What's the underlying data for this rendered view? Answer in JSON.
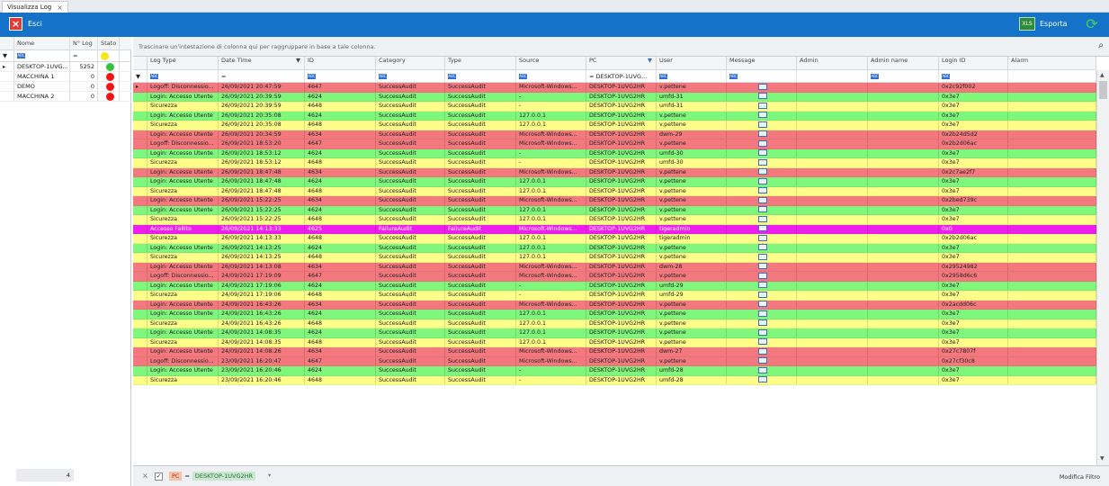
{
  "tab": {
    "title": "Visualizza Log",
    "close": "×"
  },
  "toolbar": {
    "esci_label": "Esci",
    "esporta_label": "Esporta"
  },
  "left_panel": {
    "headers": [
      "Nome",
      "N° Log",
      "Stato"
    ],
    "filter_text": "=",
    "rows": [
      {
        "name": "DESKTOP-1UVG...",
        "count": "5252",
        "status": "green"
      },
      {
        "name": "MACCHINA 1",
        "count": "0",
        "status": "red"
      },
      {
        "name": "DEMO",
        "count": "0",
        "status": "red"
      },
      {
        "name": "MACCHINA 2",
        "count": "0",
        "status": "red"
      }
    ],
    "filter_status": "yellow",
    "footer_count": "4"
  },
  "group_panel": {
    "hint": "Trascinare un'intestazione di colonna qui per raggruppare in base a tale colonna."
  },
  "columns": [
    "Log Type",
    "Date Time",
    "ID",
    "Category",
    "Type",
    "Source",
    "PC",
    "User",
    "Message",
    "Admin",
    "Admin name",
    "Login ID",
    "Alarm"
  ],
  "filter_row": {
    "date": "=",
    "pc": "= DESKTOP-1UVG..."
  },
  "rows": [
    {
      "c": "red",
      "t": "Logoff: Disconnessio...",
      "d": "26/09/2021 20:47:59",
      "id": "4647",
      "cat": "SuccessAudit",
      "ty": "SuccessAudit",
      "src": "Microsoft-Windows...",
      "pc": "DESKTOP-1UVG2HR",
      "u": "v.pettene",
      "lid": "0x2c92f002"
    },
    {
      "c": "green",
      "t": "Login: Accesso Utente",
      "d": "26/09/2021 20:39:59",
      "id": "4624",
      "cat": "SuccessAudit",
      "ty": "SuccessAudit",
      "src": "-",
      "pc": "DESKTOP-1UVG2HR",
      "u": "umfd-31",
      "lid": "0x3e7"
    },
    {
      "c": "yellow",
      "t": "Sicurezza",
      "d": "26/09/2021 20:39:59",
      "id": "4648",
      "cat": "SuccessAudit",
      "ty": "SuccessAudit",
      "src": "-",
      "pc": "DESKTOP-1UVG2HR",
      "u": "umfd-31",
      "lid": "0x3e7"
    },
    {
      "c": "green",
      "t": "Login: Accesso Utente",
      "d": "26/09/2021 20:35:08",
      "id": "4624",
      "cat": "SuccessAudit",
      "ty": "SuccessAudit",
      "src": "127.0.0.1",
      "pc": "DESKTOP-1UVG2HR",
      "u": "v.pettene",
      "lid": "0x3e7"
    },
    {
      "c": "yellow",
      "t": "Sicurezza",
      "d": "26/09/2021 20:35:08",
      "id": "4648",
      "cat": "SuccessAudit",
      "ty": "SuccessAudit",
      "src": "127.0.0.1",
      "pc": "DESKTOP-1UVG2HR",
      "u": "v.pettene",
      "lid": "0x3e7"
    },
    {
      "c": "red",
      "t": "Login: Accesso Utente",
      "d": "26/09/2021 20:34:59",
      "id": "4634",
      "cat": "SuccessAudit",
      "ty": "SuccessAudit",
      "src": "Microsoft-Windows...",
      "pc": "DESKTOP-1UVG2HR",
      "u": "dwm-29",
      "lid": "0x2b24d5d2"
    },
    {
      "c": "red",
      "t": "Logoff: Disconnessio...",
      "d": "26/09/2021 18:53:20",
      "id": "4647",
      "cat": "SuccessAudit",
      "ty": "SuccessAudit",
      "src": "Microsoft-Windows...",
      "pc": "DESKTOP-1UVG2HR",
      "u": "v.pettene",
      "lid": "0x2b2d06ac"
    },
    {
      "c": "green",
      "t": "Login: Accesso Utente",
      "d": "26/09/2021 18:53:12",
      "id": "4624",
      "cat": "SuccessAudit",
      "ty": "SuccessAudit",
      "src": "-",
      "pc": "DESKTOP-1UVG2HR",
      "u": "umfd-30",
      "lid": "0x3e7"
    },
    {
      "c": "yellow",
      "t": "Sicurezza",
      "d": "26/09/2021 18:53:12",
      "id": "4648",
      "cat": "SuccessAudit",
      "ty": "SuccessAudit",
      "src": "-",
      "pc": "DESKTOP-1UVG2HR",
      "u": "umfd-30",
      "lid": "0x3e7"
    },
    {
      "c": "red",
      "t": "Login: Accesso Utente",
      "d": "26/09/2021 18:47:48",
      "id": "4634",
      "cat": "SuccessAudit",
      "ty": "SuccessAudit",
      "src": "Microsoft-Windows...",
      "pc": "DESKTOP-1UVG2HR",
      "u": "v.pettene",
      "lid": "0x2c7ae2f7"
    },
    {
      "c": "green",
      "t": "Login: Accesso Utente",
      "d": "26/09/2021 18:47:48",
      "id": "4624",
      "cat": "SuccessAudit",
      "ty": "SuccessAudit",
      "src": "127.0.0.1",
      "pc": "DESKTOP-1UVG2HR",
      "u": "v.pettene",
      "lid": "0x3e7"
    },
    {
      "c": "yellow",
      "t": "Sicurezza",
      "d": "26/09/2021 18:47:48",
      "id": "4648",
      "cat": "SuccessAudit",
      "ty": "SuccessAudit",
      "src": "127.0.0.1",
      "pc": "DESKTOP-1UVG2HR",
      "u": "v.pettene",
      "lid": "0x3e7"
    },
    {
      "c": "red",
      "t": "Login: Accesso Utente",
      "d": "26/09/2021 15:22:25",
      "id": "4634",
      "cat": "SuccessAudit",
      "ty": "SuccessAudit",
      "src": "Microsoft-Windows...",
      "pc": "DESKTOP-1UVG2HR",
      "u": "v.pettene",
      "lid": "0x2bed739c"
    },
    {
      "c": "green",
      "t": "Login: Accesso Utente",
      "d": "26/09/2021 15:22:25",
      "id": "4624",
      "cat": "SuccessAudit",
      "ty": "SuccessAudit",
      "src": "127.0.0.1",
      "pc": "DESKTOP-1UVG2HR",
      "u": "v.pettene",
      "lid": "0x3e7"
    },
    {
      "c": "yellow",
      "t": "Sicurezza",
      "d": "26/09/2021 15:22:25",
      "id": "4648",
      "cat": "SuccessAudit",
      "ty": "SuccessAudit",
      "src": "127.0.0.1",
      "pc": "DESKTOP-1UVG2HR",
      "u": "v.pettene",
      "lid": "0x3e7"
    },
    {
      "c": "mag",
      "t": "Accesso Fallito",
      "d": "26/09/2021 14:13:33",
      "id": "4625",
      "cat": "FailureAudit",
      "ty": "FailureAudit",
      "src": "Microsoft-Windows...",
      "pc": "DESKTOP-1UVG2HR",
      "u": "tigeradmin",
      "lid": "0x0"
    },
    {
      "c": "yellow",
      "t": "Sicurezza",
      "d": "26/09/2021 14:13:33",
      "id": "4648",
      "cat": "SuccessAudit",
      "ty": "SuccessAudit",
      "src": "127.0.0.1",
      "pc": "DESKTOP-1UVG2HR",
      "u": "tigeradmin",
      "lid": "0x2b2d06ac"
    },
    {
      "c": "green",
      "t": "Login: Accesso Utente",
      "d": "26/09/2021 14:13:25",
      "id": "4624",
      "cat": "SuccessAudit",
      "ty": "SuccessAudit",
      "src": "127.0.0.1",
      "pc": "DESKTOP-1UVG2HR",
      "u": "v.pettene",
      "lid": "0x3e7"
    },
    {
      "c": "yellow",
      "t": "Sicurezza",
      "d": "26/09/2021 14:13:25",
      "id": "4648",
      "cat": "SuccessAudit",
      "ty": "SuccessAudit",
      "src": "127.0.0.1",
      "pc": "DESKTOP-1UVG2HR",
      "u": "v.pettene",
      "lid": "0x3e7"
    },
    {
      "c": "red",
      "t": "Login: Accesso Utente",
      "d": "26/09/2021 14:13:08",
      "id": "4634",
      "cat": "SuccessAudit",
      "ty": "SuccessAudit",
      "src": "Microsoft-Windows...",
      "pc": "DESKTOP-1UVG2HR",
      "u": "dwm-28",
      "lid": "0x29524982"
    },
    {
      "c": "red",
      "t": "Logoff: Disconnessio...",
      "d": "24/09/2021 17:19:09",
      "id": "4647",
      "cat": "SuccessAudit",
      "ty": "SuccessAudit",
      "src": "Microsoft-Windows...",
      "pc": "DESKTOP-1UVG2HR",
      "u": "v.pettene",
      "lid": "0x2958d6c6"
    },
    {
      "c": "green",
      "t": "Login: Accesso Utente",
      "d": "24/09/2021 17:19:06",
      "id": "4624",
      "cat": "SuccessAudit",
      "ty": "SuccessAudit",
      "src": "-",
      "pc": "DESKTOP-1UVG2HR",
      "u": "umfd-29",
      "lid": "0x3e7"
    },
    {
      "c": "yellow",
      "t": "Sicurezza",
      "d": "24/09/2021 17:19:06",
      "id": "4648",
      "cat": "SuccessAudit",
      "ty": "SuccessAudit",
      "src": "-",
      "pc": "DESKTOP-1UVG2HR",
      "u": "umfd-29",
      "lid": "0x3e7"
    },
    {
      "c": "red",
      "t": "Login: Accesso Utente",
      "d": "24/09/2021 16:43:26",
      "id": "4634",
      "cat": "SuccessAudit",
      "ty": "SuccessAudit",
      "src": "Microsoft-Windows...",
      "pc": "DESKTOP-1UVG2HR",
      "u": "v.pettene",
      "lid": "0x2acdd06c"
    },
    {
      "c": "green",
      "t": "Login: Accesso Utente",
      "d": "24/09/2021 16:43:26",
      "id": "4624",
      "cat": "SuccessAudit",
      "ty": "SuccessAudit",
      "src": "127.0.0.1",
      "pc": "DESKTOP-1UVG2HR",
      "u": "v.pettene",
      "lid": "0x3e7"
    },
    {
      "c": "yellow",
      "t": "Sicurezza",
      "d": "24/09/2021 16:43:26",
      "id": "4648",
      "cat": "SuccessAudit",
      "ty": "SuccessAudit",
      "src": "127.0.0.1",
      "pc": "DESKTOP-1UVG2HR",
      "u": "v.pettene",
      "lid": "0x3e7"
    },
    {
      "c": "green",
      "t": "Login: Accesso Utente",
      "d": "24/09/2021 14:08:35",
      "id": "4624",
      "cat": "SuccessAudit",
      "ty": "SuccessAudit",
      "src": "127.0.0.1",
      "pc": "DESKTOP-1UVG2HR",
      "u": "v.pettene",
      "lid": "0x3e7"
    },
    {
      "c": "yellow",
      "t": "Sicurezza",
      "d": "24/09/2021 14:08:35",
      "id": "4648",
      "cat": "SuccessAudit",
      "ty": "SuccessAudit",
      "src": "127.0.0.1",
      "pc": "DESKTOP-1UVG2HR",
      "u": "v.pettene",
      "lid": "0x3e7"
    },
    {
      "c": "red",
      "t": "Login: Accesso Utente",
      "d": "24/09/2021 14:08:26",
      "id": "4634",
      "cat": "SuccessAudit",
      "ty": "SuccessAudit",
      "src": "Microsoft-Windows...",
      "pc": "DESKTOP-1UVG2HR",
      "u": "dwm-27",
      "lid": "0x27c7807f"
    },
    {
      "c": "red",
      "t": "Logoff: Disconnessio...",
      "d": "23/09/2021 16:20:47",
      "id": "4647",
      "cat": "SuccessAudit",
      "ty": "SuccessAudit",
      "src": "Microsoft-Windows...",
      "pc": "DESKTOP-1UVG2HR",
      "u": "v.pettene",
      "lid": "0x27cf30c8"
    },
    {
      "c": "green",
      "t": "Login: Accesso Utente",
      "d": "23/09/2021 16:20:46",
      "id": "4624",
      "cat": "SuccessAudit",
      "ty": "SuccessAudit",
      "src": "-",
      "pc": "DESKTOP-1UVG2HR",
      "u": "umfd-28",
      "lid": "0x3e7"
    },
    {
      "c": "yellow",
      "t": "Sicurezza",
      "d": "23/09/2021 16:20:46",
      "id": "4648",
      "cat": "SuccessAudit",
      "ty": "SuccessAudit",
      "src": "-",
      "pc": "DESKTOP-1UVG2HR",
      "u": "umfd-28",
      "lid": "0x3e7"
    }
  ],
  "statusbar": {
    "cross": "×",
    "check": "✓",
    "filter_col": "PC",
    "filter_op": "=",
    "filter_val": "DESKTOP-1UVG2HR",
    "modify_label": "Modifica Filtro"
  }
}
